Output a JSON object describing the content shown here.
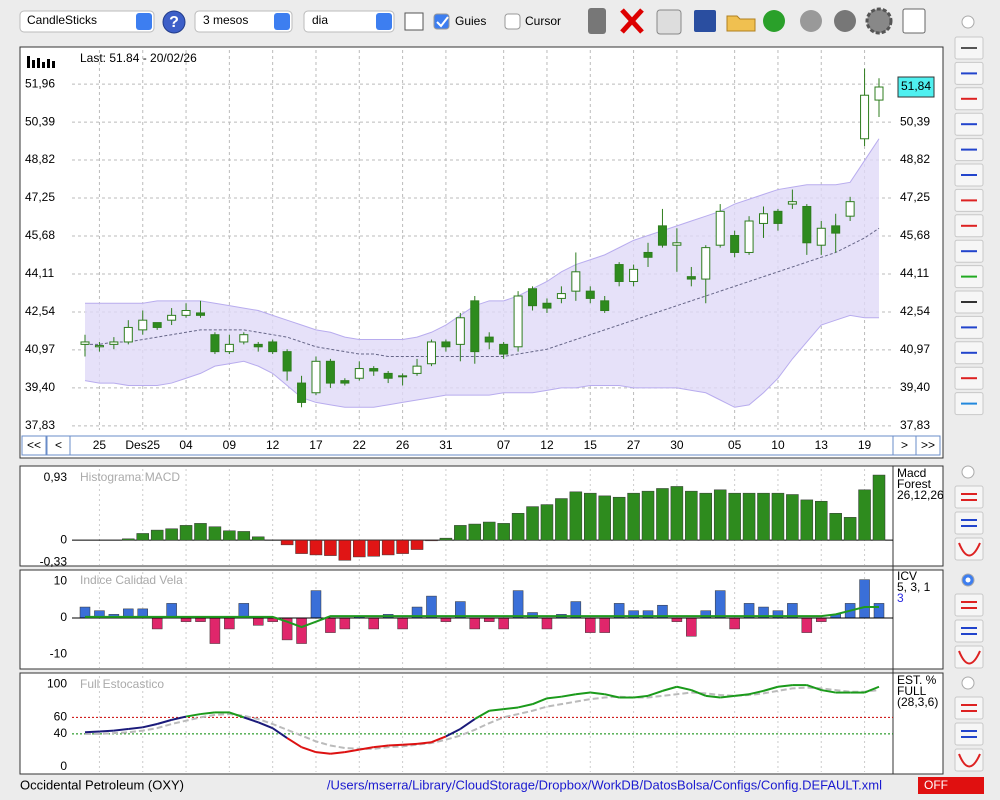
{
  "toolbar": {
    "chart_type": "CandleSticks",
    "period": "3 mesos",
    "interval": "dia",
    "guides_label": "Guies",
    "guides_checked": true,
    "cursor_label": "Cursor",
    "cursor_checked": false
  },
  "price_chart": {
    "type": "candlestick",
    "last_label": "Last: 51.84 - 20/02/26",
    "last_value_label": "51,84",
    "ylim": [
      37.66,
      53.37
    ],
    "yticks": [
      {
        "value": 51.96,
        "label": "51,96"
      },
      {
        "value": 50.39,
        "label": "50,39"
      },
      {
        "value": 48.82,
        "label": "48,82"
      },
      {
        "value": 47.25,
        "label": "47,25"
      },
      {
        "value": 45.68,
        "label": "45,68"
      },
      {
        "value": 44.11,
        "label": "44,11"
      },
      {
        "value": 42.54,
        "label": "42,54"
      },
      {
        "value": 40.97,
        "label": "40,97"
      },
      {
        "value": 39.4,
        "label": "39,40"
      },
      {
        "value": 37.83,
        "label": "37,83"
      }
    ],
    "dates": [
      null,
      "25",
      null,
      null,
      "Des25",
      null,
      null,
      "04",
      null,
      null,
      "09",
      null,
      null,
      "12",
      null,
      null,
      "17",
      null,
      null,
      "22",
      null,
      null,
      "26",
      null,
      null,
      "31",
      null,
      null,
      null,
      "07",
      null,
      null,
      "12",
      null,
      null,
      "15",
      null,
      null,
      "27",
      null,
      null,
      "30",
      null,
      null,
      null,
      "05",
      null,
      null,
      "10",
      null,
      null,
      "13",
      null,
      null,
      "19",
      null
    ],
    "nav": [
      "<<",
      "<",
      ">",
      ">>"
    ],
    "up_color": "#ffffff",
    "down_color": "#2e8b1e",
    "edge_color": "#2e7d1e",
    "open": [
      41.2,
      41.1,
      41.2,
      41.3,
      41.8,
      42.1,
      42.2,
      42.4,
      42.5,
      41.6,
      40.9,
      41.3,
      41.2,
      41.3,
      40.9,
      39.6,
      39.2,
      40.5,
      39.7,
      39.8,
      40.2,
      40.0,
      39.9,
      40.0,
      40.4,
      41.3,
      41.2,
      43.0,
      41.5,
      41.2,
      41.1,
      43.5,
      42.9,
      43.1,
      43.4,
      43.4,
      43.0,
      44.5,
      43.8,
      45.0,
      46.1,
      45.3,
      44.0,
      43.9,
      45.3,
      45.7,
      45.0,
      46.2,
      46.7,
      47.0,
      46.9,
      45.3,
      46.1,
      46.5,
      49.7,
      51.3
    ],
    "high": [
      41.6,
      41.3,
      41.5,
      42.2,
      42.6,
      42.1,
      42.7,
      42.9,
      43.0,
      41.7,
      41.6,
      41.7,
      41.3,
      41.4,
      41.0,
      39.9,
      40.7,
      40.6,
      39.8,
      40.5,
      40.3,
      40.1,
      40.0,
      40.6,
      41.4,
      41.4,
      42.5,
      43.2,
      41.7,
      41.3,
      43.4,
      43.6,
      43.1,
      43.6,
      45.0,
      43.6,
      43.2,
      44.6,
      44.5,
      45.4,
      46.8,
      46.0,
      44.4,
      45.3,
      47.0,
      45.9,
      46.5,
      46.9,
      46.8,
      47.6,
      47.0,
      46.3,
      46.6,
      47.3,
      52.6,
      52.2
    ],
    "low": [
      40.7,
      40.9,
      41.0,
      41.2,
      41.6,
      41.8,
      42.0,
      42.3,
      42.3,
      40.8,
      40.8,
      41.2,
      40.9,
      40.8,
      39.7,
      38.6,
      39.1,
      39.4,
      39.5,
      39.7,
      39.9,
      39.6,
      39.5,
      39.9,
      40.3,
      40.9,
      40.5,
      40.4,
      41.0,
      40.6,
      40.9,
      42.6,
      42.5,
      42.9,
      43.0,
      42.9,
      42.5,
      43.6,
      43.6,
      44.4,
      45.2,
      44.2,
      43.6,
      42.9,
      45.2,
      44.8,
      44.9,
      45.6,
      45.9,
      46.8,
      44.9,
      44.9,
      45.0,
      46.3,
      49.4,
      50.6
    ],
    "close": [
      41.3,
      41.15,
      41.3,
      41.9,
      42.2,
      41.9,
      42.4,
      42.6,
      42.4,
      40.9,
      41.2,
      41.6,
      41.1,
      40.9,
      40.1,
      38.8,
      40.5,
      39.6,
      39.6,
      40.2,
      40.1,
      39.8,
      39.9,
      40.3,
      41.3,
      41.1,
      42.3,
      40.9,
      41.3,
      40.8,
      43.2,
      42.8,
      42.7,
      43.3,
      44.2,
      43.1,
      42.6,
      43.8,
      44.3,
      44.8,
      45.3,
      45.4,
      43.9,
      45.2,
      46.7,
      45.0,
      46.3,
      46.6,
      46.2,
      47.1,
      45.4,
      46.0,
      45.8,
      47.1,
      51.5,
      51.84
    ],
    "bands": {
      "fill": "#e0d9f8",
      "line": "#b8acee",
      "ma_color": "#666688",
      "upper": [
        42.9,
        42.9,
        42.9,
        42.9,
        42.9,
        43.0,
        43.0,
        43.0,
        43.0,
        42.9,
        42.8,
        42.7,
        42.6,
        42.4,
        42.2,
        42.0,
        41.8,
        41.7,
        41.5,
        41.4,
        41.4,
        41.4,
        41.4,
        41.5,
        41.7,
        42.0,
        42.4,
        42.8,
        43.0,
        43.0,
        43.2,
        43.5,
        43.8,
        44.2,
        44.5,
        44.7,
        44.9,
        45.2,
        45.5,
        45.7,
        45.9,
        46.1,
        46.3,
        46.5,
        46.7,
        47.0,
        47.2,
        47.4,
        47.6,
        47.7,
        47.8,
        47.8,
        47.8,
        47.9,
        48.8,
        49.7
      ],
      "middle": [
        41.2,
        41.2,
        41.3,
        41.3,
        41.4,
        41.5,
        41.6,
        41.7,
        41.8,
        41.8,
        41.8,
        41.8,
        41.7,
        41.6,
        41.5,
        41.3,
        41.1,
        41.0,
        40.9,
        40.8,
        40.8,
        40.7,
        40.7,
        40.7,
        40.7,
        40.7,
        40.7,
        40.7,
        40.7,
        40.7,
        40.8,
        40.9,
        41.0,
        41.2,
        41.4,
        41.6,
        41.8,
        42.0,
        42.2,
        42.4,
        42.6,
        42.8,
        43.0,
        43.2,
        43.4,
        43.6,
        43.8,
        44.0,
        44.2,
        44.4,
        44.6,
        44.8,
        45.0,
        45.3,
        45.6,
        46.0
      ],
      "lower": [
        39.7,
        39.6,
        39.6,
        39.5,
        39.5,
        39.5,
        39.6,
        39.8,
        40.0,
        40.3,
        40.4,
        40.5,
        40.3,
        40.0,
        39.5,
        39.0,
        38.8,
        38.7,
        38.6,
        38.6,
        38.6,
        38.7,
        38.8,
        38.9,
        39.0,
        39.1,
        39.1,
        39.1,
        39.1,
        39.2,
        39.2,
        39.2,
        39.3,
        39.4,
        39.4,
        39.5,
        39.5,
        39.5,
        39.4,
        39.4,
        39.4,
        39.4,
        39.3,
        39.2,
        38.9,
        38.6,
        38.7,
        39.2,
        39.8,
        40.6,
        41.3,
        42.0,
        42.2,
        42.4,
        42.3,
        42.3
      ]
    }
  },
  "macd": {
    "type": "bar",
    "title": "Histograma MACD",
    "labels": [
      "Macd",
      "Forest",
      "26,12,26"
    ],
    "color": "#2e8b1e",
    "ylim": [
      -0.37,
      1.06
    ],
    "yticks": [
      {
        "value": 0.93,
        "label": "0,93"
      },
      0,
      {
        "value": -0.33,
        "label": "-0,33"
      }
    ],
    "values": [
      0,
      0,
      0,
      0.02,
      0.1,
      0.15,
      0.17,
      0.22,
      0.25,
      0.2,
      0.14,
      0.13,
      0.05,
      0,
      -0.07,
      -0.2,
      -0.22,
      -0.23,
      -0.3,
      -0.25,
      -0.24,
      -0.22,
      -0.2,
      -0.14,
      -0.01,
      0.03,
      0.22,
      0.24,
      0.27,
      0.25,
      0.4,
      0.5,
      0.53,
      0.62,
      0.72,
      0.7,
      0.66,
      0.64,
      0.7,
      0.73,
      0.77,
      0.8,
      0.73,
      0.7,
      0.75,
      0.7,
      0.7,
      0.7,
      0.7,
      0.68,
      0.6,
      0.58,
      0.4,
      0.34,
      0.75,
      0.97
    ],
    "negative_color": "#e01515"
  },
  "icv": {
    "type": "bar",
    "title": "Indice Calidad Vela",
    "labels": [
      "ICV",
      "5, 3, 1",
      "3"
    ],
    "positive_color": "#3a6fd8",
    "negative_color": "#e0266b",
    "line_color": "#1f9a1f",
    "ylim": [
      -13.7,
      12.6
    ],
    "yticks": [
      10,
      0,
      -10
    ],
    "values": [
      3,
      2,
      1,
      2.5,
      2.5,
      -3,
      4,
      -1,
      -1,
      -7,
      -3,
      4,
      -2,
      -1,
      -6,
      -7,
      7.5,
      -4,
      -3,
      0.5,
      -3,
      1,
      -3,
      3,
      6,
      -1,
      4.5,
      -3,
      -1,
      -3,
      7.5,
      1.5,
      -3,
      1,
      4.5,
      -4,
      -4,
      4,
      2,
      2,
      3.5,
      -1,
      -5,
      2,
      7.5,
      -3,
      4,
      3,
      2,
      4,
      -4,
      -1,
      1,
      4,
      10.5,
      4
    ],
    "signal": [
      0.3,
      0.3,
      0.3,
      0.3,
      0.3,
      0.3,
      0.3,
      0.3,
      0.3,
      0.3,
      0.3,
      0.3,
      0.3,
      0.3,
      -1,
      -2.5,
      -1,
      0.5,
      0.5,
      0.5,
      0.5,
      0.5,
      0.5,
      0.5,
      0.5,
      0.5,
      0.5,
      0.5,
      0.5,
      0.5,
      0.5,
      0.5,
      0.5,
      0.5,
      0.5,
      0.5,
      0.5,
      0.5,
      0.5,
      0.5,
      0.5,
      0.5,
      0.5,
      0.5,
      0.5,
      0.5,
      0.5,
      0.5,
      0.5,
      0.5,
      0.5,
      0.5,
      1,
      2,
      3,
      3
    ]
  },
  "stochastic": {
    "type": "line",
    "title": "Full Estocastico",
    "labels": [
      "EST. %",
      "FULL",
      "(28,3,6)"
    ],
    "ylim": [
      -6,
      110
    ],
    "yticks": [
      100,
      60,
      40,
      0
    ],
    "tick_line_colors": [
      null,
      "#cc0000",
      "#008800",
      null
    ],
    "colors": {
      "high": "#1a9a1a",
      "mid": "#1a1a7a",
      "low": "#dd1111",
      "d": "#bbbbbb"
    },
    "k": [
      42,
      43,
      44,
      46,
      48,
      52,
      57,
      61,
      64,
      66,
      66,
      60,
      54,
      47,
      35,
      24,
      18,
      16,
      18,
      21,
      24,
      26,
      27,
      28,
      30,
      37,
      46,
      58,
      68,
      70,
      72,
      76,
      83,
      85,
      88,
      90,
      88,
      84,
      84,
      86,
      92,
      97,
      93,
      86,
      84,
      86,
      88,
      92,
      97,
      99,
      99,
      93,
      90,
      90,
      90,
      97
    ],
    "d": [
      40,
      40,
      41,
      42,
      44,
      47,
      52,
      56,
      60,
      63,
      64,
      62,
      58,
      52,
      45,
      38,
      31,
      26,
      23,
      22,
      22,
      24,
      25,
      27,
      29,
      33,
      38,
      45,
      53,
      60,
      64,
      68,
      73,
      76,
      79,
      82,
      84,
      85,
      84,
      84,
      86,
      88,
      90,
      89,
      87,
      86,
      87,
      89,
      92,
      95,
      96,
      95,
      93,
      91,
      91,
      93
    ]
  },
  "footer": {
    "company": "Occidental Petroleum (OXY)",
    "config_path": "/Users/mserra/Library/CloudStorage/Dropbox/WorkDB/DatosBolsa/Configs/Config.DEFAULT.xml",
    "status": "OFF"
  }
}
